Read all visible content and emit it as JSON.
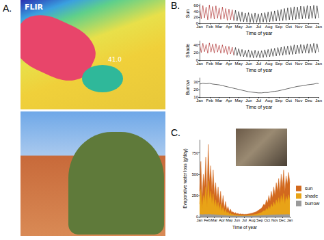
{
  "panel_labels": [
    "A.",
    "B.",
    "C."
  ],
  "thermal_image": {
    "brand": "FLIR",
    "readout": "41.0"
  },
  "chart_data": [
    {
      "type": "line",
      "y_label": "Sun",
      "x_label": "Time of year",
      "grid": false,
      "xlim": [
        0,
        365
      ],
      "xticks": [
        {
          "value": 0,
          "label": "Jan"
        },
        {
          "value": 31,
          "label": "Feb"
        },
        {
          "value": 59,
          "label": "Mar"
        },
        {
          "value": 90,
          "label": "Apr"
        },
        {
          "value": 120,
          "label": "May"
        },
        {
          "value": 151,
          "label": "Jun"
        },
        {
          "value": 181,
          "label": "Jul"
        },
        {
          "value": 212,
          "label": "Aug"
        },
        {
          "value": 243,
          "label": "Sep"
        },
        {
          "value": 273,
          "label": "Oct"
        },
        {
          "value": 304,
          "label": "Nov"
        },
        {
          "value": 334,
          "label": "Dec"
        },
        {
          "value": 365,
          "label": "Jan"
        }
      ],
      "ylim": [
        0,
        65
      ],
      "yticks": [
        0,
        20,
        40,
        60
      ],
      "series": [
        {
          "color": "#a31515",
          "x": [
            0,
            5,
            10,
            15,
            20,
            25,
            30,
            35,
            40,
            45,
            50,
            55,
            60,
            65,
            70,
            75,
            80,
            85,
            90,
            95,
            100,
            105
          ],
          "values": [
            58,
            15,
            60,
            18,
            55,
            12,
            62,
            16,
            57,
            14,
            59,
            17,
            52,
            13,
            55,
            15,
            50,
            10,
            48,
            12,
            46,
            9
          ]
        },
        {
          "color": "#000000",
          "x": [
            105,
            110,
            115,
            120,
            125,
            130,
            135,
            140,
            145,
            150,
            155,
            160,
            165,
            170,
            175,
            180,
            185,
            190,
            195,
            200,
            205,
            210,
            215,
            220,
            225,
            230,
            235,
            240,
            245,
            250,
            255,
            260,
            265,
            270,
            275,
            280,
            285,
            290,
            295,
            300,
            305,
            310,
            315,
            320,
            325,
            330,
            335,
            340,
            345,
            350,
            355,
            360,
            365
          ],
          "values": [
            9,
            44,
            8,
            40,
            6,
            38,
            5,
            35,
            4,
            36,
            3,
            33,
            2,
            35,
            3,
            32,
            2,
            34,
            4,
            36,
            3,
            38,
            5,
            40,
            6,
            42,
            7,
            45,
            8,
            47,
            9,
            50,
            10,
            52,
            12,
            54,
            11,
            56,
            13,
            55,
            14,
            58,
            15,
            57,
            16,
            60,
            15,
            58,
            17,
            61,
            16,
            59,
            18
          ]
        }
      ]
    },
    {
      "type": "line",
      "y_label": "Shade",
      "x_label": "Time of year",
      "grid": false,
      "xlim": [
        0,
        365
      ],
      "xticks": [
        {
          "value": 0,
          "label": "Jan"
        },
        {
          "value": 31,
          "label": "Feb"
        },
        {
          "value": 59,
          "label": "Mar"
        },
        {
          "value": 90,
          "label": "Apr"
        },
        {
          "value": 120,
          "label": "May"
        },
        {
          "value": 151,
          "label": "Jun"
        },
        {
          "value": 181,
          "label": "Jul"
        },
        {
          "value": 212,
          "label": "Aug"
        },
        {
          "value": 243,
          "label": "Sep"
        },
        {
          "value": 273,
          "label": "Oct"
        },
        {
          "value": 304,
          "label": "Nov"
        },
        {
          "value": 334,
          "label": "Dec"
        },
        {
          "value": 365,
          "label": "Jan"
        }
      ],
      "ylim": [
        0,
        50
      ],
      "yticks": [
        0,
        20,
        40
      ],
      "series": [
        {
          "color": "#a31515",
          "x": [
            0,
            5,
            10,
            15,
            20,
            25,
            30,
            35,
            40,
            45,
            50,
            55,
            60,
            65,
            70,
            75,
            80,
            85,
            90,
            95,
            100,
            105
          ],
          "values": [
            42,
            20,
            44,
            22,
            41,
            18,
            45,
            21,
            42,
            19,
            43,
            21,
            39,
            18,
            40,
            19,
            37,
            15,
            36,
            16,
            34,
            13
          ]
        },
        {
          "color": "#000000",
          "x": [
            105,
            110,
            115,
            120,
            125,
            130,
            135,
            140,
            145,
            150,
            155,
            160,
            165,
            170,
            175,
            180,
            185,
            190,
            195,
            200,
            205,
            210,
            215,
            220,
            225,
            230,
            235,
            240,
            245,
            250,
            255,
            260,
            265,
            270,
            275,
            280,
            285,
            290,
            295,
            300,
            305,
            310,
            315,
            320,
            325,
            330,
            335,
            340,
            345,
            350,
            355,
            360,
            365
          ],
          "values": [
            13,
            33,
            12,
            30,
            10,
            28,
            9,
            26,
            8,
            27,
            7,
            25,
            6,
            26,
            7,
            24,
            6,
            25,
            7,
            27,
            8,
            28,
            9,
            30,
            10,
            31,
            11,
            33,
            12,
            34,
            13,
            36,
            14,
            37,
            15,
            38,
            15,
            40,
            16,
            39,
            17,
            41,
            18,
            40,
            19,
            43,
            18,
            42,
            20,
            44,
            19,
            43,
            21
          ]
        }
      ]
    },
    {
      "type": "line",
      "y_label": "Burrow",
      "x_label": "Time of year",
      "grid": false,
      "xlim": [
        0,
        365
      ],
      "xticks": [
        {
          "value": 0,
          "label": "Jan"
        },
        {
          "value": 31,
          "label": "Feb"
        },
        {
          "value": 59,
          "label": "Mar"
        },
        {
          "value": 90,
          "label": "Apr"
        },
        {
          "value": 120,
          "label": "May"
        },
        {
          "value": 151,
          "label": "Jun"
        },
        {
          "value": 181,
          "label": "Jul"
        },
        {
          "value": 212,
          "label": "Aug"
        },
        {
          "value": 243,
          "label": "Sep"
        },
        {
          "value": 273,
          "label": "Oct"
        },
        {
          "value": 304,
          "label": "Nov"
        },
        {
          "value": 334,
          "label": "Dec"
        },
        {
          "value": 365,
          "label": "Jan"
        }
      ],
      "ylim": [
        10,
        35
      ],
      "yticks": [
        10,
        20,
        30
      ],
      "x": [
        0,
        10,
        20,
        30,
        40,
        50,
        60,
        70,
        80,
        90,
        100,
        110,
        120,
        130,
        140,
        150,
        160,
        170,
        180,
        190,
        200,
        210,
        220,
        230,
        240,
        250,
        260,
        270,
        280,
        290,
        300,
        310,
        320,
        330,
        340,
        350,
        360,
        365
      ],
      "series": [
        {
          "color": "#000000",
          "values": [
            27,
            28,
            27.5,
            28,
            27,
            26.5,
            26,
            25,
            24,
            23,
            22,
            21,
            20,
            19,
            18,
            17,
            16.5,
            16,
            15.5,
            15.5,
            16,
            16,
            17,
            17.5,
            18,
            19,
            20,
            21,
            22,
            23,
            24,
            24.5,
            25,
            26,
            26.5,
            27,
            28,
            27.5
          ]
        }
      ]
    },
    {
      "type": "area",
      "y_label": "Evaporative water loss (g/day)",
      "x_label": "Time of year",
      "grid": false,
      "legend": "right",
      "xlim": [
        0,
        365
      ],
      "xticks": [
        {
          "value": 0,
          "label": "Jan"
        },
        {
          "value": 31,
          "label": "Feb"
        },
        {
          "value": 59,
          "label": "Mar"
        },
        {
          "value": 90,
          "label": "Apr"
        },
        {
          "value": 120,
          "label": "May"
        },
        {
          "value": 151,
          "label": "Jun"
        },
        {
          "value": 181,
          "label": "Jul"
        },
        {
          "value": 212,
          "label": "Aug"
        },
        {
          "value": 243,
          "label": "Sep"
        },
        {
          "value": 273,
          "label": "Oct"
        },
        {
          "value": 304,
          "label": "Nov"
        },
        {
          "value": 334,
          "label": "Dec"
        },
        {
          "value": 365,
          "label": "Jan"
        }
      ],
      "ylim": [
        0,
        900
      ],
      "yticks": [
        0,
        250,
        500,
        750
      ],
      "x": [
        0,
        5,
        10,
        15,
        20,
        25,
        30,
        35,
        40,
        45,
        50,
        55,
        60,
        65,
        70,
        75,
        80,
        85,
        90,
        95,
        100,
        105,
        110,
        115,
        120,
        125,
        130,
        135,
        140,
        145,
        150,
        155,
        160,
        165,
        170,
        175,
        180,
        185,
        190,
        195,
        200,
        205,
        210,
        215,
        220,
        225,
        230,
        235,
        240,
        245,
        250,
        255,
        260,
        265,
        270,
        275,
        280,
        285,
        290,
        295,
        300,
        305,
        310,
        315,
        320,
        325,
        330,
        335,
        340,
        345,
        350,
        355,
        360,
        365
      ],
      "series": [
        {
          "name": "sun",
          "color": "#d2691e",
          "values": [
            300,
            650,
            200,
            500,
            350,
            700,
            250,
            850,
            400,
            600,
            300,
            550,
            250,
            400,
            200,
            350,
            150,
            300,
            120,
            250,
            100,
            180,
            80,
            120,
            60,
            90,
            50,
            60,
            40,
            50,
            35,
            40,
            30,
            35,
            30,
            32,
            28,
            30,
            30,
            32,
            35,
            38,
            40,
            45,
            50,
            55,
            60,
            70,
            80,
            90,
            100,
            120,
            150,
            130,
            200,
            160,
            250,
            180,
            300,
            220,
            350,
            250,
            400,
            300,
            450,
            280,
            500,
            350,
            550,
            300,
            480,
            380,
            520,
            400
          ]
        },
        {
          "name": "shade",
          "color": "#e8a317",
          "values": [
            150,
            320,
            100,
            250,
            180,
            350,
            120,
            420,
            200,
            300,
            150,
            270,
            120,
            200,
            100,
            170,
            80,
            150,
            60,
            120,
            50,
            90,
            40,
            60,
            30,
            45,
            25,
            30,
            20,
            25,
            18,
            20,
            15,
            18,
            15,
            16,
            14,
            15,
            15,
            16,
            18,
            19,
            20,
            22,
            25,
            28,
            30,
            35,
            40,
            45,
            50,
            60,
            75,
            65,
            100,
            80,
            125,
            90,
            150,
            110,
            175,
            125,
            200,
            150,
            225,
            140,
            250,
            175,
            275,
            150,
            240,
            190,
            260,
            200
          ]
        },
        {
          "name": "burrow",
          "color": "#9a9a9a",
          "values": [
            25,
            28,
            24,
            27,
            26,
            29,
            25,
            30,
            26,
            28,
            25,
            27,
            24,
            25,
            22,
            23,
            20,
            21,
            18,
            19,
            17,
            16,
            15,
            14,
            13,
            12,
            11,
            11,
            10,
            10,
            9,
            9,
            8,
            8,
            8,
            8,
            8,
            8,
            8,
            9,
            9,
            9,
            10,
            10,
            11,
            11,
            12,
            13,
            14,
            15,
            16,
            17,
            18,
            18,
            19,
            20,
            21,
            21,
            22,
            22,
            23,
            23,
            24,
            24,
            25,
            24,
            26,
            25,
            27,
            25,
            26,
            27,
            26,
            25
          ]
        }
      ]
    }
  ]
}
